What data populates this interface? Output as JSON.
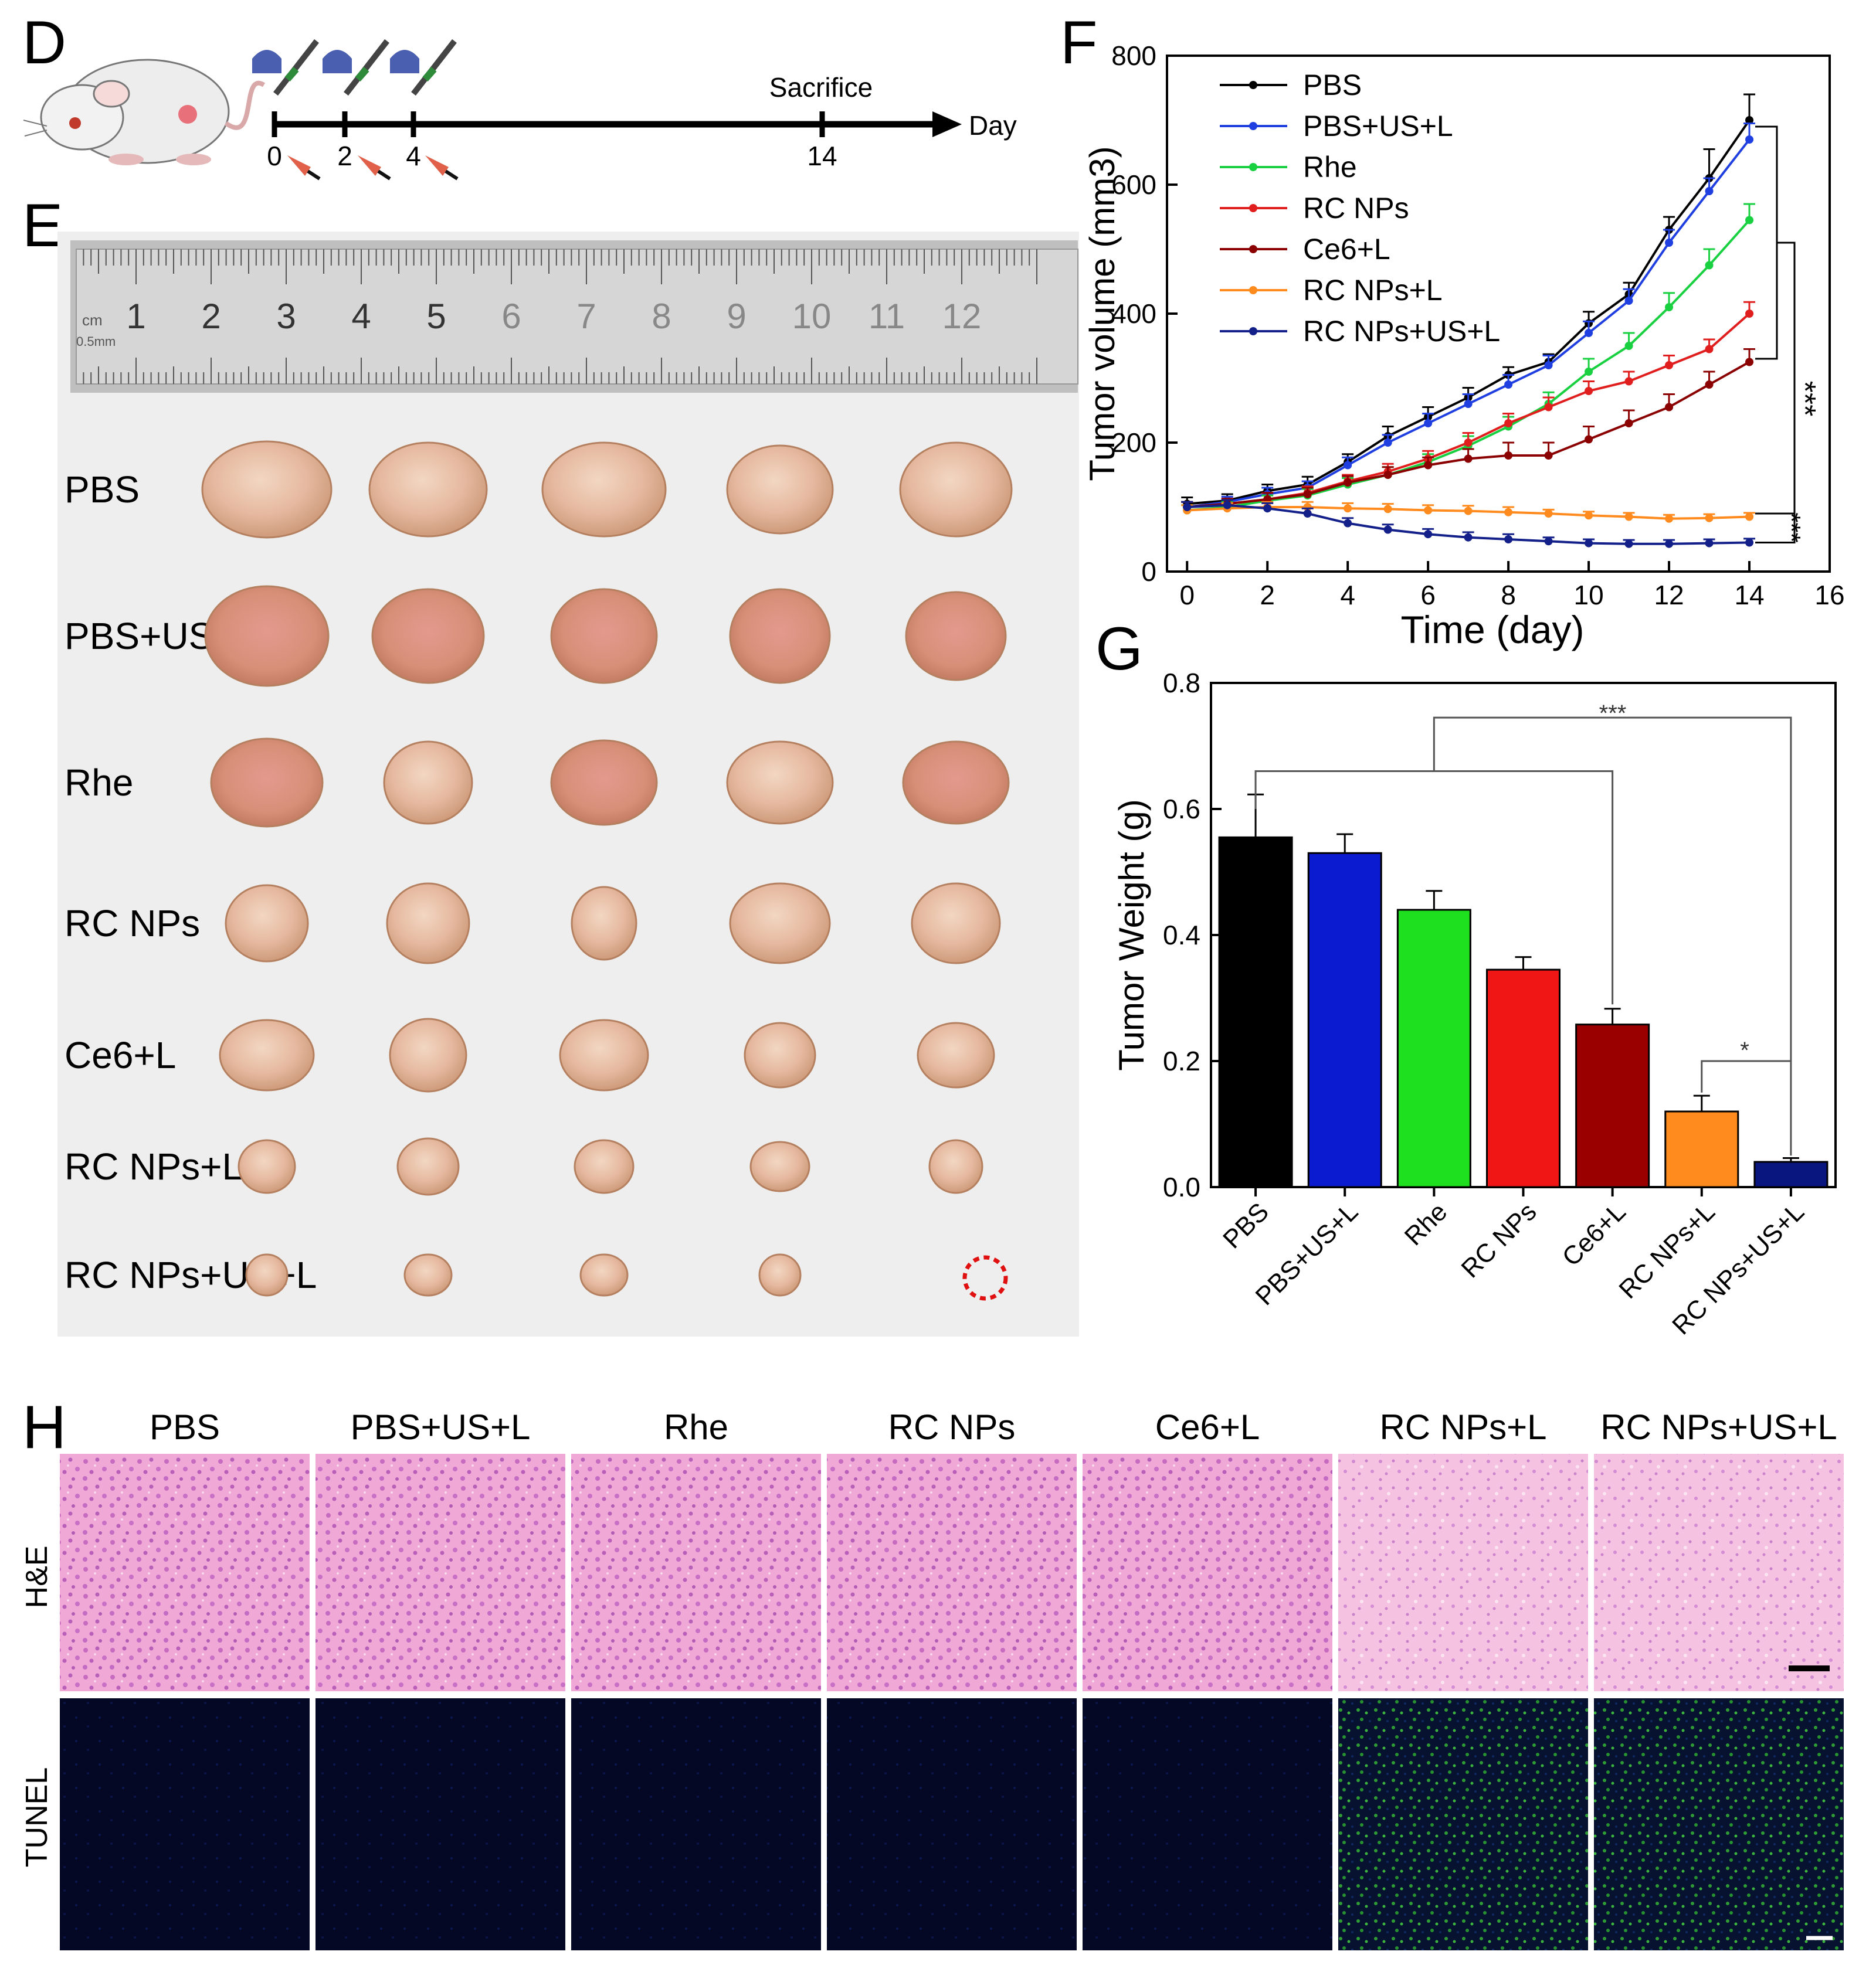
{
  "panels": {
    "d": {
      "letter": "D",
      "days": [
        "0",
        "2",
        "4",
        "14"
      ],
      "sacrifice_label": "Sacrifice",
      "axis_label": "Day"
    },
    "e": {
      "letter": "E",
      "ruler_numbers": [
        "1",
        "2",
        "3",
        "4",
        "5",
        "6",
        "7",
        "8",
        "9",
        "10",
        "11",
        "12"
      ],
      "ruler_unit_cm": "cm",
      "ruler_unit_mm": "0.5mm",
      "row_labels": [
        "PBS",
        "PBS+US+L",
        "Rhe",
        "RC NPs",
        "Ce6+L",
        "RC NPs+L",
        "RC NPs+US+L"
      ]
    },
    "f": {
      "letter": "F",
      "significance": [
        "***",
        "***"
      ]
    },
    "g": {
      "letter": "G",
      "significance": [
        "***",
        "*"
      ]
    },
    "h": {
      "letter": "H",
      "columns": [
        "PBS",
        "PBS+US+L",
        "Rhe",
        "RC NPs",
        "Ce6+L",
        "RC NPs+L",
        "RC NPs+US+L"
      ],
      "row_labels": [
        "H&E",
        "TUNEL"
      ]
    }
  },
  "chart_data": [
    {
      "type": "line",
      "panel": "F",
      "title": "",
      "xlabel": "Time (day)",
      "ylabel": "Tumor volume (mm3)",
      "xlim": [
        -0.5,
        16
      ],
      "ylim": [
        0,
        800
      ],
      "xticks": [
        0,
        2,
        4,
        6,
        8,
        10,
        12,
        14,
        16
      ],
      "yticks": [
        0,
        200,
        400,
        600,
        800
      ],
      "x": [
        0,
        1,
        2,
        3,
        4,
        5,
        6,
        7,
        8,
        9,
        10,
        11,
        12,
        13,
        14
      ],
      "legend_position": "top-left",
      "series": [
        {
          "name": "PBS",
          "color": "#000000",
          "marker": "circle",
          "values": [
            105,
            110,
            125,
            135,
            170,
            210,
            240,
            270,
            305,
            325,
            385,
            430,
            530,
            610,
            700
          ],
          "errors": [
            10,
            10,
            10,
            12,
            12,
            15,
            15,
            15,
            12,
            12,
            18,
            18,
            20,
            45,
            40
          ]
        },
        {
          "name": "PBS+US+L",
          "color": "#1f3fe0",
          "marker": "circle",
          "values": [
            100,
            108,
            120,
            130,
            165,
            200,
            230,
            260,
            290,
            320,
            370,
            420,
            510,
            590,
            670
          ],
          "errors": [
            8,
            8,
            10,
            10,
            12,
            12,
            15,
            15,
            15,
            15,
            18,
            18,
            20,
            20,
            25
          ]
        },
        {
          "name": "Rhe",
          "color": "#18d040",
          "marker": "triangle-up",
          "values": [
            95,
            100,
            110,
            118,
            135,
            150,
            170,
            195,
            225,
            260,
            310,
            350,
            410,
            475,
            545
          ],
          "errors": [
            8,
            8,
            8,
            10,
            10,
            12,
            12,
            15,
            15,
            18,
            20,
            20,
            22,
            25,
            25
          ]
        },
        {
          "name": "RC NPs",
          "color": "#e01e1e",
          "marker": "triangle-down",
          "values": [
            100,
            105,
            112,
            122,
            140,
            155,
            175,
            200,
            230,
            255,
            280,
            295,
            320,
            345,
            400
          ],
          "errors": [
            8,
            8,
            10,
            10,
            10,
            12,
            12,
            15,
            15,
            15,
            15,
            15,
            15,
            15,
            18
          ]
        },
        {
          "name": "Ce6+L",
          "color": "#8b0000",
          "marker": "diamond",
          "values": [
            100,
            105,
            112,
            120,
            138,
            150,
            165,
            175,
            180,
            180,
            205,
            230,
            255,
            290,
            325
          ],
          "errors": [
            8,
            8,
            10,
            10,
            10,
            12,
            12,
            15,
            20,
            20,
            20,
            20,
            20,
            20,
            20
          ]
        },
        {
          "name": "RC NPs+L",
          "color": "#ff8a1e",
          "marker": "left-triangle",
          "values": [
            95,
            98,
            100,
            100,
            98,
            97,
            95,
            94,
            92,
            90,
            87,
            85,
            82,
            83,
            85
          ],
          "errors": [
            8,
            8,
            8,
            8,
            8,
            8,
            8,
            8,
            8,
            6,
            6,
            6,
            6,
            6,
            6
          ]
        },
        {
          "name": "RC NPs+US+L",
          "color": "#14208a",
          "marker": "right-triangle",
          "values": [
            100,
            103,
            98,
            90,
            75,
            65,
            58,
            53,
            50,
            47,
            44,
            43,
            43,
            44,
            45
          ],
          "errors": [
            8,
            8,
            8,
            8,
            8,
            8,
            8,
            8,
            8,
            6,
            6,
            6,
            6,
            6,
            6
          ]
        }
      ]
    },
    {
      "type": "bar",
      "panel": "G",
      "title": "",
      "xlabel": "",
      "ylabel": "Tumor Weight (g)",
      "ylim": [
        0,
        0.8
      ],
      "yticks": [
        0.0,
        0.2,
        0.4,
        0.6,
        0.8
      ],
      "categories": [
        "PBS",
        "PBS+US+L",
        "Rhe",
        "RC NPs",
        "Ce6+L",
        "RC NPs+L",
        "RC NPs+US+L"
      ],
      "values": [
        0.555,
        0.53,
        0.44,
        0.345,
        0.258,
        0.12,
        0.04
      ],
      "errors": [
        0.068,
        0.03,
        0.03,
        0.02,
        0.025,
        0.025,
        0.006
      ],
      "colors": [
        "#000000",
        "#0a1bd0",
        "#1ee01e",
        "#f01616",
        "#9b0000",
        "#ff8a1e",
        "#0a1680"
      ]
    }
  ]
}
